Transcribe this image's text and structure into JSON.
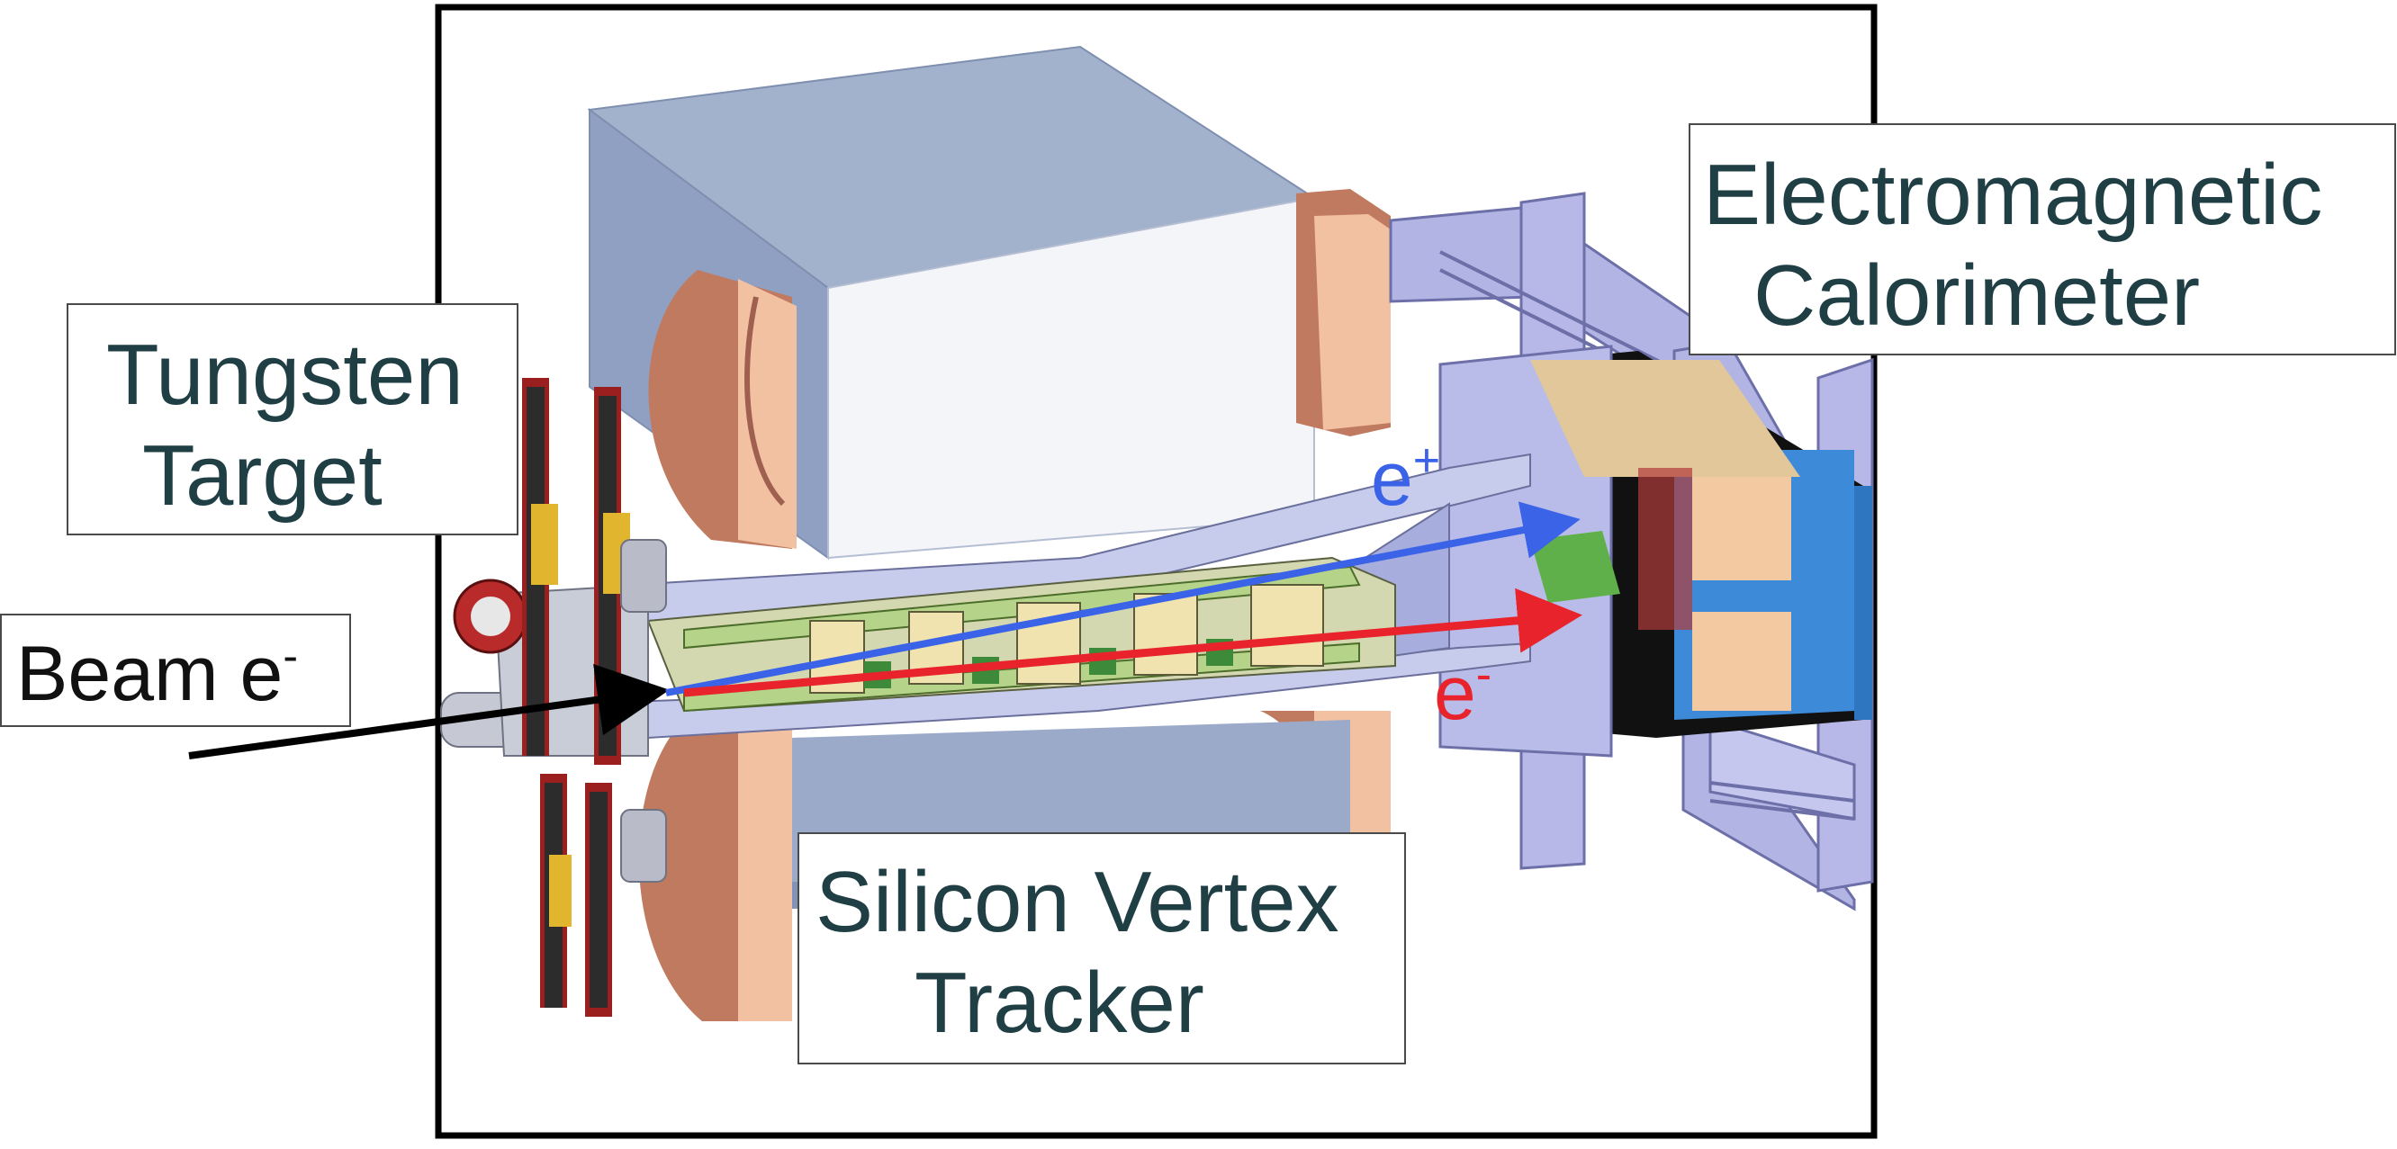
{
  "labels": {
    "tungsten_target": {
      "line1": "Tungsten",
      "line2": "Target"
    },
    "electromagnetic_calorimeter": {
      "line1": "Electromagnetic",
      "line2": "Calorimeter"
    },
    "silicon_vertex_tracker": {
      "line1": "Silicon Vertex",
      "line2": "Tracker"
    },
    "beam": {
      "text": "Beam e",
      "charge": "-"
    }
  },
  "particles": {
    "positron": {
      "symbol": "e",
      "charge": "+",
      "color": "#3a63e8"
    },
    "electron": {
      "symbol": "e",
      "charge": "-",
      "color": "#e8232b"
    }
  },
  "colors": {
    "frame": "#000000",
    "magnet_body": "#9aaac8",
    "magnet_face": "#f4f5f9",
    "copper_coil": "#c9846b",
    "coil_face": "#f2c1a2",
    "support_frame": "#b2b4e4",
    "calorimeter_blue": "#3c8ad8",
    "label_text": "#1f3f45"
  }
}
